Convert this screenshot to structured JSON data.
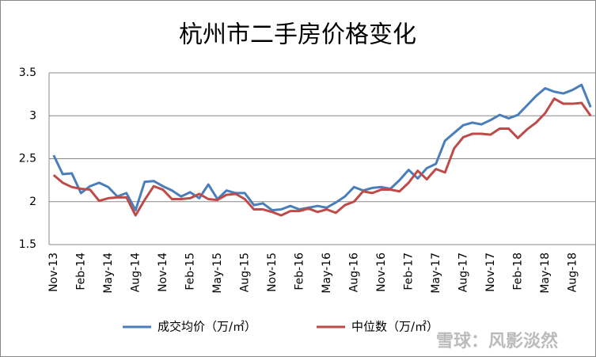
{
  "chart_data": {
    "type": "line",
    "title": "杭州市二手房价格变化",
    "categories": [
      "Nov-13",
      null,
      null,
      "Feb-14",
      null,
      null,
      "May-14",
      null,
      null,
      "Aug-14",
      null,
      null,
      "Nov-14",
      null,
      null,
      "Feb-15",
      null,
      null,
      "May-15",
      null,
      null,
      "Aug-15",
      null,
      null,
      "Nov-15",
      null,
      null,
      "Feb-16",
      null,
      null,
      "May-16",
      null,
      null,
      "Aug-16",
      null,
      null,
      "Nov-16",
      null,
      null,
      "Feb-17",
      null,
      null,
      "May-17",
      null,
      null,
      "Aug-17",
      null,
      null,
      "Nov-17",
      null,
      null,
      "Feb-18",
      null,
      null,
      "May-18",
      null,
      null,
      "Aug-18",
      null,
      null
    ],
    "series": [
      {
        "name": "成交均价（万/㎡）",
        "color": "#4a7ebb",
        "values": [
          2.54,
          2.32,
          2.33,
          2.1,
          2.18,
          2.22,
          2.17,
          2.06,
          2.1,
          1.9,
          2.23,
          2.24,
          2.18,
          2.13,
          2.06,
          2.11,
          2.04,
          2.2,
          2.03,
          2.13,
          2.1,
          2.1,
          1.96,
          1.98,
          1.9,
          1.91,
          1.95,
          1.91,
          1.93,
          1.95,
          1.93,
          1.99,
          2.06,
          2.17,
          2.13,
          2.16,
          2.17,
          2.15,
          2.25,
          2.37,
          2.27,
          2.39,
          2.44,
          2.71,
          2.8,
          2.89,
          2.92,
          2.9,
          2.95,
          3.01,
          2.97,
          3.01,
          3.12,
          3.23,
          3.32,
          3.28,
          3.26,
          3.3,
          3.36,
          3.1
        ]
      },
      {
        "name": "中位数（万/㎡）",
        "color": "#be4b48",
        "values": [
          2.31,
          2.22,
          2.17,
          2.15,
          2.14,
          2.01,
          2.04,
          2.05,
          2.05,
          1.84,
          2.02,
          2.18,
          2.14,
          2.03,
          2.03,
          2.04,
          2.09,
          2.03,
          2.02,
          2.08,
          2.09,
          2.03,
          1.91,
          1.91,
          1.88,
          1.84,
          1.89,
          1.89,
          1.92,
          1.88,
          1.91,
          1.87,
          1.96,
          2.0,
          2.12,
          2.1,
          2.14,
          2.14,
          2.12,
          2.22,
          2.36,
          2.26,
          2.38,
          2.34,
          2.62,
          2.75,
          2.79,
          2.79,
          2.78,
          2.85,
          2.85,
          2.74,
          2.84,
          2.92,
          3.03,
          3.2,
          3.14,
          3.14,
          3.15,
          3.0
        ]
      }
    ],
    "ylim": [
      1.5,
      3.5
    ],
    "yticks": [
      1.5,
      2,
      2.5,
      3,
      3.5
    ],
    "grid": true,
    "legend": "bottom",
    "watermark": "雪球：风影淡然"
  }
}
